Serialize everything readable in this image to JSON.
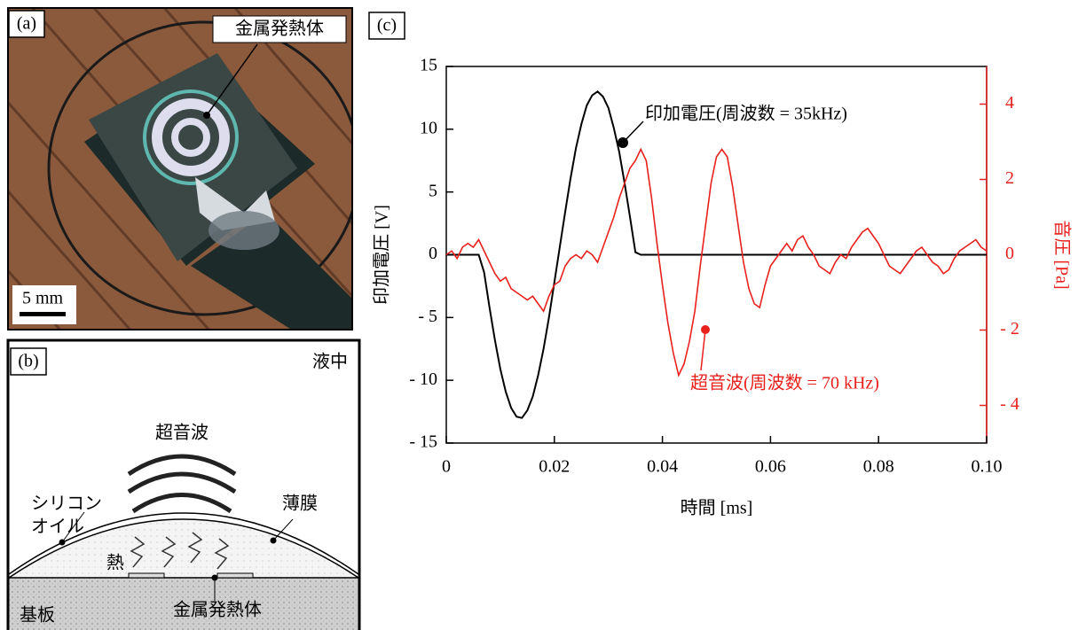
{
  "panel_a": {
    "label": "(a)",
    "callout": "金属発熱体",
    "scale_bar": "5 mm"
  },
  "panel_b": {
    "label": "(b)",
    "medium": "液中",
    "wave": "超音波",
    "oil": [
      "シリコン",
      "オイル"
    ],
    "film": "薄膜",
    "heat": "熱",
    "substrate": "基板",
    "heater": "金属発熱体"
  },
  "chart_data": {
    "type": "line",
    "panel_label": "(c)",
    "xlabel": "時間 [ms]",
    "ylabel": "印加電圧 [V]",
    "y2label": "音圧 [Pa]",
    "x": [
      0,
      0.001,
      0.002,
      0.003,
      0.004,
      0.005,
      0.006,
      0.007,
      0.008,
      0.009,
      0.01,
      0.011,
      0.012,
      0.013,
      0.014,
      0.015,
      0.016,
      0.017,
      0.018,
      0.019,
      0.02,
      0.021,
      0.022,
      0.023,
      0.024,
      0.025,
      0.026,
      0.027,
      0.028,
      0.029,
      0.03,
      0.031,
      0.032,
      0.033,
      0.034,
      0.035,
      0.036,
      0.037,
      0.038,
      0.039,
      0.04,
      0.041,
      0.042,
      0.043,
      0.044,
      0.045,
      0.046,
      0.047,
      0.048,
      0.049,
      0.05,
      0.051,
      0.052,
      0.053,
      0.054,
      0.055,
      0.056,
      0.057,
      0.058,
      0.059,
      0.06,
      0.061,
      0.062,
      0.063,
      0.064,
      0.065,
      0.066,
      0.067,
      0.068,
      0.069,
      0.07,
      0.071,
      0.072,
      0.073,
      0.074,
      0.075,
      0.076,
      0.077,
      0.078,
      0.079,
      0.08,
      0.081,
      0.082,
      0.083,
      0.084,
      0.085,
      0.086,
      0.087,
      0.088,
      0.089,
      0.09,
      0.091,
      0.092,
      0.093,
      0.094,
      0.095,
      0.096,
      0.097,
      0.098,
      0.099,
      0.1
    ],
    "series": [
      {
        "name": "印加電圧(周波数 = 35kHz)",
        "color": "#000000",
        "values": [
          0,
          0,
          0,
          0,
          0,
          0,
          0,
          -1.4,
          -4.2,
          -6.8,
          -9.1,
          -10.9,
          -12.2,
          -12.9,
          -13.0,
          -12.4,
          -11.3,
          -9.6,
          -7.5,
          -5.0,
          -2.2,
          0.6,
          3.4,
          6.1,
          8.5,
          10.4,
          11.9,
          12.7,
          13.0,
          12.6,
          11.7,
          10.1,
          8.2,
          5.7,
          3.0,
          0.2,
          0,
          0,
          0,
          0,
          0,
          0,
          0,
          0,
          0,
          0,
          0,
          0,
          0,
          0,
          0,
          0,
          0,
          0,
          0,
          0,
          0,
          0,
          0,
          0,
          0,
          0,
          0,
          0,
          0,
          0,
          0,
          0,
          0,
          0,
          0,
          0,
          0,
          0,
          0,
          0,
          0,
          0,
          0,
          0,
          0,
          0,
          0,
          0,
          0,
          0,
          0,
          0,
          0,
          0,
          0,
          0,
          0,
          0,
          0,
          0,
          0,
          0,
          0,
          0,
          0
        ]
      },
      {
        "name": "超音波(周波数 = 70 kHz)",
        "color": "#e8211d",
        "axis": "y2",
        "values": [
          0.0,
          0.1,
          -0.1,
          0.2,
          0.3,
          0.2,
          0.4,
          0.1,
          -0.2,
          -0.5,
          -0.7,
          -0.6,
          -0.9,
          -1.0,
          -1.1,
          -1.2,
          -1.1,
          -1.3,
          -1.5,
          -1.1,
          -0.8,
          -0.7,
          -0.3,
          -0.1,
          0.0,
          -0.1,
          0.1,
          0.0,
          -0.2,
          0.2,
          0.6,
          1.0,
          1.5,
          1.9,
          2.3,
          2.5,
          2.8,
          2.5,
          1.5,
          0.3,
          -0.8,
          -1.8,
          -2.6,
          -3.2,
          -2.9,
          -2.3,
          -1.5,
          -0.3,
          0.8,
          1.9,
          2.6,
          2.8,
          2.6,
          1.8,
          0.8,
          -0.2,
          -0.9,
          -1.3,
          -1.4,
          -0.8,
          -0.3,
          -0.1,
          0.1,
          0.3,
          0.1,
          0.4,
          0.5,
          0.2,
          0.0,
          -0.3,
          -0.4,
          -0.5,
          -0.2,
          0.0,
          -0.1,
          0.2,
          0.4,
          0.6,
          0.7,
          0.5,
          0.3,
          0.0,
          -0.3,
          -0.4,
          -0.5,
          -0.3,
          -0.1,
          0.1,
          0.2,
          0.0,
          -0.2,
          -0.3,
          -0.5,
          -0.4,
          -0.1,
          0.1,
          0.2,
          0.3,
          0.4,
          0.2,
          0.1
        ]
      }
    ],
    "xlim": [
      0,
      0.1
    ],
    "xticks": [
      0,
      0.02,
      0.04,
      0.06,
      0.08,
      {
        "value": 0.1,
        "label": "0.10"
      }
    ],
    "ylim": [
      -15,
      15
    ],
    "yticks": [
      {
        "value": -15,
        "label": "- 15"
      },
      {
        "value": -10,
        "label": "- 10"
      },
      {
        "value": -5,
        "label": "- 5"
      },
      0,
      5,
      10,
      15
    ],
    "y2lim": [
      -5,
      5
    ],
    "y2ticks": [
      {
        "value": -4,
        "label": "- 4"
      },
      {
        "value": -2,
        "label": "- 2"
      },
      0,
      2,
      4
    ]
  }
}
